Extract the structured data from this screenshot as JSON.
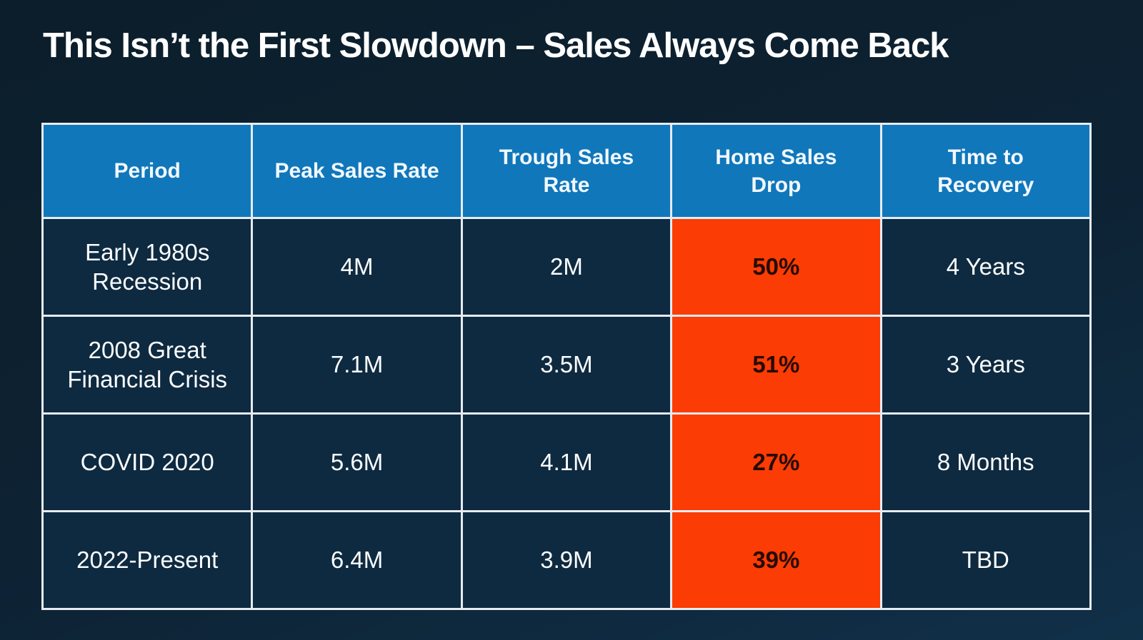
{
  "slide": {
    "title": "This Isn’t the First Slowdown – Sales Always Come Back"
  },
  "table": {
    "headers": {
      "period": "Period",
      "peak": "Peak Sales Rate",
      "trough": "Trough Sales\nRate",
      "drop": "Home Sales\nDrop",
      "recovery": "Time to\nRecovery"
    },
    "rows": [
      {
        "period": "Early 1980s Recession",
        "peak": "4M",
        "trough": "2M",
        "drop": "50%",
        "recovery": "4 Years"
      },
      {
        "period": "2008 Great Financial Crisis",
        "peak": "7.1M",
        "trough": "3.5M",
        "drop": "51%",
        "recovery": "3 Years"
      },
      {
        "period": "COVID 2020",
        "peak": "5.6M",
        "trough": "4.1M",
        "drop": "27%",
        "recovery": "8 Months"
      },
      {
        "period": "2022-Present",
        "peak": "6.4M",
        "trough": "3.9M",
        "drop": "39%",
        "recovery": "TBD"
      }
    ]
  },
  "colors": {
    "background_top": "#0c1e2b",
    "background_bottom": "#103049",
    "header_blue": "#1077bb",
    "cell_navy": "#0e2a40",
    "drop_orange": "#fb3c04",
    "drop_text": "#260b03",
    "border_light": "#e6ebf2",
    "title_text": "#ffffff"
  },
  "chart_data": {
    "type": "table",
    "title": "This Isn’t the First Slowdown – Sales Always Come Back",
    "columns": [
      "Period",
      "Peak Sales Rate",
      "Trough Sales Rate",
      "Home Sales Drop",
      "Time to Recovery"
    ],
    "rows": [
      [
        "Early 1980s Recession",
        "4M",
        "2M",
        "50%",
        "4 Years"
      ],
      [
        "2008 Great Financial Crisis",
        "7.1M",
        "3.5M",
        "51%",
        "3 Years"
      ],
      [
        "COVID 2020",
        "5.6M",
        "4.1M",
        "27%",
        "8 Months"
      ],
      [
        "2022-Present",
        "6.4M",
        "3.9M",
        "39%",
        "TBD"
      ]
    ],
    "highlighted_column": "Home Sales Drop",
    "legend_position": "none",
    "grid": true
  }
}
